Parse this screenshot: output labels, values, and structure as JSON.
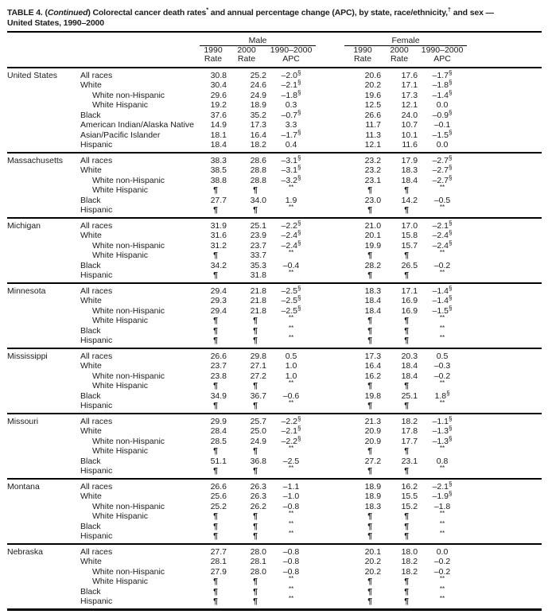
{
  "title": {
    "part1": "TABLE 4. (",
    "continued": "Continued",
    "part2": ") Colorectal cancer death rates",
    "star_marker": "*",
    "part3": " and annual percentage change (APC), by state, race/ethnicity,",
    "dagger_marker": "†",
    "part4": " and sex —",
    "line2": "United States, 1990–2000"
  },
  "header": {
    "group_male": "Male",
    "group_female": "Female",
    "cols": [
      {
        "l1": "1990",
        "l2": "Rate"
      },
      {
        "l1": "2000",
        "l2": "Rate"
      },
      {
        "l1": "1990–2000",
        "l2": "APC"
      }
    ]
  },
  "sections": [
    {
      "state": "United States",
      "rows": [
        {
          "race": "All races",
          "indent": false,
          "m": [
            "30.8",
            "25.2",
            "–2.0§"
          ],
          "f": [
            "20.6",
            "17.6",
            "–1.7§"
          ]
        },
        {
          "race": "White",
          "indent": false,
          "m": [
            "30.4",
            "24.6",
            "–2.1§"
          ],
          "f": [
            "20.2",
            "17.1",
            "–1.8§"
          ]
        },
        {
          "race": "White non-Hispanic",
          "indent": true,
          "m": [
            "29.6",
            "24.9",
            "–1.8§"
          ],
          "f": [
            "19.6",
            "17.3",
            "–1.4§"
          ]
        },
        {
          "race": "White Hispanic",
          "indent": true,
          "m": [
            "19.2",
            "18.9",
            "0.3"
          ],
          "f": [
            "12.5",
            "12.1",
            "0.0"
          ]
        },
        {
          "race": "Black",
          "indent": false,
          "m": [
            "37.6",
            "35.2",
            "–0.7§"
          ],
          "f": [
            "26.6",
            "24.0",
            "–0.9§"
          ]
        },
        {
          "race": "American Indian/Alaska Native",
          "indent": false,
          "m": [
            "14.9",
            "17.3",
            "3.3"
          ],
          "f": [
            "11.7",
            "10.7",
            "–0.1"
          ]
        },
        {
          "race": "Asian/Pacific Islander",
          "indent": false,
          "m": [
            "18.1",
            "16.4",
            "–1.7§"
          ],
          "f": [
            "11.3",
            "10.1",
            "–1.5§"
          ]
        },
        {
          "race": "Hispanic",
          "indent": false,
          "m": [
            "18.4",
            "18.2",
            "0.4"
          ],
          "f": [
            "12.1",
            "11.6",
            "0.0"
          ]
        }
      ]
    },
    {
      "state": "Massachusetts",
      "rows": [
        {
          "race": "All races",
          "indent": false,
          "m": [
            "38.3",
            "28.6",
            "–3.1§"
          ],
          "f": [
            "23.2",
            "17.9",
            "–2.7§"
          ]
        },
        {
          "race": "White",
          "indent": false,
          "m": [
            "38.5",
            "28.8",
            "–3.1§"
          ],
          "f": [
            "23.2",
            "18.3",
            "–2.7§"
          ]
        },
        {
          "race": "White non-Hispanic",
          "indent": true,
          "m": [
            "38.8",
            "28.8",
            "–3.2§"
          ],
          "f": [
            "23.1",
            "18.4",
            "–2.7§"
          ]
        },
        {
          "race": "White Hispanic",
          "indent": true,
          "m": [
            "¶",
            "¶",
            "**"
          ],
          "f": [
            "¶",
            "¶",
            "**"
          ]
        },
        {
          "race": "Black",
          "indent": false,
          "m": [
            "27.7",
            "34.0",
            "1.9"
          ],
          "f": [
            "23.0",
            "14.2",
            "–0.5"
          ]
        },
        {
          "race": "Hispanic",
          "indent": false,
          "m": [
            "¶",
            "¶",
            "**"
          ],
          "f": [
            "¶",
            "¶",
            "**"
          ]
        }
      ]
    },
    {
      "state": "Michigan",
      "rows": [
        {
          "race": "All races",
          "indent": false,
          "m": [
            "31.9",
            "25.1",
            "–2.2§"
          ],
          "f": [
            "21.0",
            "17.0",
            "–2.1§"
          ]
        },
        {
          "race": "White",
          "indent": false,
          "m": [
            "31.6",
            "23.9",
            "–2.4§"
          ],
          "f": [
            "20.1",
            "15.8",
            "–2.4§"
          ]
        },
        {
          "race": "White non-Hispanic",
          "indent": true,
          "m": [
            "31.2",
            "23.7",
            "–2.4§"
          ],
          "f": [
            "19.9",
            "15.7",
            "–2.4§"
          ]
        },
        {
          "race": "White Hispanic",
          "indent": true,
          "m": [
            "¶",
            "33.7",
            "**"
          ],
          "f": [
            "¶",
            "¶",
            "**"
          ]
        },
        {
          "race": "Black",
          "indent": false,
          "m": [
            "34.2",
            "35.3",
            "–0.4"
          ],
          "f": [
            "28.2",
            "26.5",
            "–0.2"
          ]
        },
        {
          "race": "Hispanic",
          "indent": false,
          "m": [
            "¶",
            "31.8",
            "**"
          ],
          "f": [
            "¶",
            "¶",
            "**"
          ]
        }
      ]
    },
    {
      "state": "Minnesota",
      "rows": [
        {
          "race": "All races",
          "indent": false,
          "m": [
            "29.4",
            "21.8",
            "–2.5§"
          ],
          "f": [
            "18.3",
            "17.1",
            "–1.4§"
          ]
        },
        {
          "race": "White",
          "indent": false,
          "m": [
            "29.3",
            "21.8",
            "–2.5§"
          ],
          "f": [
            "18.4",
            "16.9",
            "–1.4§"
          ]
        },
        {
          "race": "White non-Hispanic",
          "indent": true,
          "m": [
            "29.4",
            "21.8",
            "–2.5§"
          ],
          "f": [
            "18.4",
            "16.9",
            "–1.5§"
          ]
        },
        {
          "race": "White Hispanic",
          "indent": true,
          "m": [
            "¶",
            "¶",
            "**"
          ],
          "f": [
            "¶",
            "¶",
            "**"
          ]
        },
        {
          "race": "Black",
          "indent": false,
          "m": [
            "¶",
            "¶",
            "**"
          ],
          "f": [
            "¶",
            "¶",
            "**"
          ]
        },
        {
          "race": "Hispanic",
          "indent": false,
          "m": [
            "¶",
            "¶",
            "**"
          ],
          "f": [
            "¶",
            "¶",
            "**"
          ]
        }
      ]
    },
    {
      "state": "Mississippi",
      "rows": [
        {
          "race": "All races",
          "indent": false,
          "m": [
            "26.6",
            "29.8",
            "0.5"
          ],
          "f": [
            "17.3",
            "20.3",
            "0.5"
          ]
        },
        {
          "race": "White",
          "indent": false,
          "m": [
            "23.7",
            "27.1",
            "1.0"
          ],
          "f": [
            "16.4",
            "18.4",
            "–0.3"
          ]
        },
        {
          "race": "White non-Hispanic",
          "indent": true,
          "m": [
            "23.8",
            "27.2",
            "1.0"
          ],
          "f": [
            "16.2",
            "18.4",
            "–0.2"
          ]
        },
        {
          "race": "White Hispanic",
          "indent": true,
          "m": [
            "¶",
            "¶",
            "**"
          ],
          "f": [
            "¶",
            "¶",
            "**"
          ]
        },
        {
          "race": "Black",
          "indent": false,
          "m": [
            "34.9",
            "36.7",
            "–0.6"
          ],
          "f": [
            "19.8",
            "25.1",
            "1.8§"
          ]
        },
        {
          "race": "Hispanic",
          "indent": false,
          "m": [
            "¶",
            "¶",
            "**"
          ],
          "f": [
            "¶",
            "¶",
            "**"
          ]
        }
      ]
    },
    {
      "state": "Missouri",
      "rows": [
        {
          "race": "All races",
          "indent": false,
          "m": [
            "29.9",
            "25.7",
            "–2.2§"
          ],
          "f": [
            "21.3",
            "18.2",
            "–1.1§"
          ]
        },
        {
          "race": "White",
          "indent": false,
          "m": [
            "28.4",
            "25.0",
            "–2.1§"
          ],
          "f": [
            "20.9",
            "17.8",
            "–1.3§"
          ]
        },
        {
          "race": "White non-Hispanic",
          "indent": true,
          "m": [
            "28.5",
            "24.9",
            "–2.2§"
          ],
          "f": [
            "20.9",
            "17.7",
            "–1.3§"
          ]
        },
        {
          "race": "White Hispanic",
          "indent": true,
          "m": [
            "¶",
            "¶",
            "**"
          ],
          "f": [
            "¶",
            "¶",
            "**"
          ]
        },
        {
          "race": "Black",
          "indent": false,
          "m": [
            "51.1",
            "36.8",
            "–2.5"
          ],
          "f": [
            "27.2",
            "23.1",
            "0.8"
          ]
        },
        {
          "race": "Hispanic",
          "indent": false,
          "m": [
            "¶",
            "¶",
            "**"
          ],
          "f": [
            "¶",
            "¶",
            "**"
          ]
        }
      ]
    },
    {
      "state": "Montana",
      "rows": [
        {
          "race": "All races",
          "indent": false,
          "m": [
            "26.6",
            "26.3",
            "–1.1"
          ],
          "f": [
            "18.9",
            "16.2",
            "–2.1§"
          ]
        },
        {
          "race": "White",
          "indent": false,
          "m": [
            "25.6",
            "26.3",
            "–1.0"
          ],
          "f": [
            "18.9",
            "15.5",
            "–1.9§"
          ]
        },
        {
          "race": "White non-Hispanic",
          "indent": true,
          "m": [
            "25.2",
            "26.2",
            "–0.8"
          ],
          "f": [
            "18.3",
            "15.2",
            "–1.8"
          ]
        },
        {
          "race": "White Hispanic",
          "indent": true,
          "m": [
            "¶",
            "¶",
            "**"
          ],
          "f": [
            "¶",
            "¶",
            "**"
          ]
        },
        {
          "race": "Black",
          "indent": false,
          "m": [
            "¶",
            "¶",
            "**"
          ],
          "f": [
            "¶",
            "¶",
            "**"
          ]
        },
        {
          "race": "Hispanic",
          "indent": false,
          "m": [
            "¶",
            "¶",
            "**"
          ],
          "f": [
            "¶",
            "¶",
            "**"
          ]
        }
      ]
    },
    {
      "state": "Nebraska",
      "rows": [
        {
          "race": "All races",
          "indent": false,
          "m": [
            "27.7",
            "28.0",
            "–0.8"
          ],
          "f": [
            "20.1",
            "18.0",
            "0.0"
          ]
        },
        {
          "race": "White",
          "indent": false,
          "m": [
            "28.1",
            "28.1",
            "–0.8"
          ],
          "f": [
            "20.2",
            "18.2",
            "–0.2"
          ]
        },
        {
          "race": "White non-Hispanic",
          "indent": true,
          "m": [
            "27.9",
            "28.0",
            "–0.8"
          ],
          "f": [
            "20.2",
            "18.2",
            "–0.2"
          ]
        },
        {
          "race": "White Hispanic",
          "indent": true,
          "m": [
            "¶",
            "¶",
            "**"
          ],
          "f": [
            "¶",
            "¶",
            "**"
          ]
        },
        {
          "race": "Black",
          "indent": false,
          "m": [
            "¶",
            "¶",
            "**"
          ],
          "f": [
            "¶",
            "¶",
            "**"
          ]
        },
        {
          "race": "Hispanic",
          "indent": false,
          "m": [
            "¶",
            "¶",
            "**"
          ],
          "f": [
            "¶",
            "¶",
            "**"
          ]
        }
      ]
    }
  ]
}
